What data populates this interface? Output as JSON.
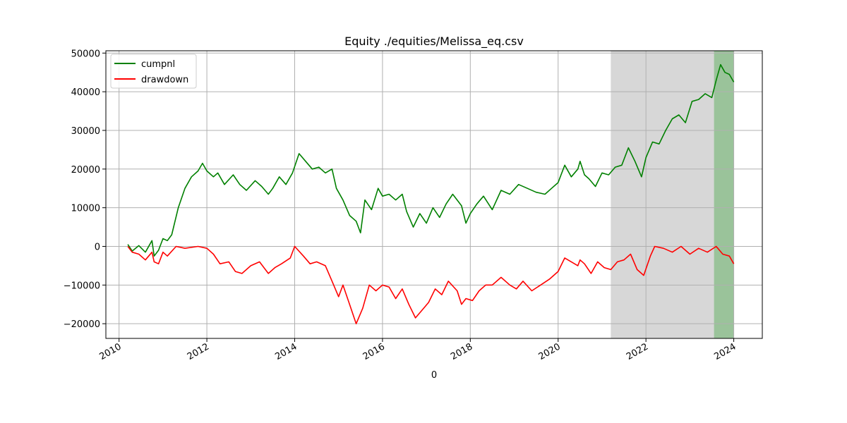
{
  "chart_data": {
    "type": "line",
    "title": "Equity ./equities/Melissa_eq.csv",
    "xlabel": "0",
    "ylabel": "",
    "xlim": [
      2009.7,
      2024.65
    ],
    "ylim": [
      -23800,
      50600
    ],
    "x_ticks": [
      2010,
      2012,
      2014,
      2016,
      2018,
      2020,
      2022,
      2024
    ],
    "x_tick_labels": [
      "2010",
      "2012",
      "2014",
      "2016",
      "2018",
      "2020",
      "2022",
      "2024"
    ],
    "y_ticks": [
      -20000,
      -10000,
      0,
      10000,
      20000,
      30000,
      40000,
      50000
    ],
    "y_tick_labels": [
      "−20000",
      "−10000",
      "0",
      "10000",
      "20000",
      "30000",
      "40000",
      "50000"
    ],
    "grid": true,
    "legend_position": "top-left",
    "shaded_regions": [
      {
        "x": [
          2021.2,
          2023.55
        ],
        "color": "#d3d3d3"
      },
      {
        "x": [
          2023.55,
          2024.0
        ],
        "color": "#8fbc8f"
      }
    ],
    "series": [
      {
        "name": "cumpnl",
        "color": "#008000",
        "x": [
          2010.2,
          2010.3,
          2010.45,
          2010.6,
          2010.75,
          2010.8,
          2010.9,
          2011.0,
          2011.1,
          2011.2,
          2011.35,
          2011.5,
          2011.65,
          2011.8,
          2011.9,
          2012.0,
          2012.15,
          2012.25,
          2012.4,
          2012.6,
          2012.75,
          2012.9,
          2013.1,
          2013.25,
          2013.4,
          2013.5,
          2013.65,
          2013.8,
          2013.95,
          2014.1,
          2014.25,
          2014.4,
          2014.55,
          2014.7,
          2014.85,
          2014.95,
          2015.1,
          2015.25,
          2015.4,
          2015.5,
          2015.6,
          2015.75,
          2015.9,
          2016.0,
          2016.15,
          2016.3,
          2016.45,
          2016.55,
          2016.7,
          2016.85,
          2017.0,
          2017.15,
          2017.3,
          2017.45,
          2017.6,
          2017.8,
          2017.9,
          2018.0,
          2018.15,
          2018.3,
          2018.5,
          2018.7,
          2018.9,
          2019.1,
          2019.3,
          2019.5,
          2019.7,
          2019.85,
          2020.0,
          2020.15,
          2020.3,
          2020.45,
          2020.5,
          2020.6,
          2020.7,
          2020.85,
          2021.0,
          2021.15,
          2021.3,
          2021.45,
          2021.6,
          2021.75,
          2021.9,
          2022.0,
          2022.15,
          2022.3,
          2022.45,
          2022.6,
          2022.75,
          2022.9,
          2023.05,
          2023.2,
          2023.35,
          2023.5,
          2023.6,
          2023.7,
          2023.8,
          2023.9,
          2024.0
        ],
        "values": [
          500,
          -1200,
          200,
          -1500,
          1500,
          -2500,
          -1000,
          2000,
          1500,
          3000,
          10000,
          15000,
          18000,
          19500,
          21500,
          19500,
          18000,
          19000,
          16000,
          18500,
          16000,
          14500,
          17000,
          15500,
          13500,
          15000,
          18000,
          16000,
          19000,
          24000,
          22000,
          20000,
          20500,
          19000,
          20000,
          15000,
          12000,
          8000,
          6500,
          3500,
          12000,
          9500,
          15000,
          13000,
          13500,
          12000,
          13500,
          9000,
          5000,
          8500,
          6000,
          10000,
          7500,
          11000,
          13500,
          10500,
          6000,
          8500,
          11000,
          13000,
          9500,
          14500,
          13500,
          16000,
          15000,
          14000,
          13500,
          15000,
          16500,
          21000,
          18000,
          20000,
          22000,
          18500,
          17500,
          15500,
          19000,
          18500,
          20500,
          21000,
          25500,
          22000,
          18000,
          23000,
          27000,
          26500,
          30000,
          33000,
          34000,
          32000,
          37500,
          38000,
          39500,
          38500,
          43000,
          47000,
          45000,
          44500,
          42500
        ]
      },
      {
        "name": "drawdown",
        "color": "#ff0000",
        "x": [
          2010.2,
          2010.3,
          2010.45,
          2010.6,
          2010.75,
          2010.8,
          2010.9,
          2011.0,
          2011.1,
          2011.3,
          2011.5,
          2011.8,
          2012.0,
          2012.15,
          2012.3,
          2012.5,
          2012.65,
          2012.8,
          2013.0,
          2013.2,
          2013.4,
          2013.55,
          2013.7,
          2013.9,
          2014.0,
          2014.2,
          2014.35,
          2014.5,
          2014.7,
          2014.85,
          2015.0,
          2015.1,
          2015.25,
          2015.4,
          2015.55,
          2015.7,
          2015.85,
          2016.0,
          2016.15,
          2016.3,
          2016.45,
          2016.6,
          2016.75,
          2016.9,
          2017.05,
          2017.2,
          2017.35,
          2017.5,
          2017.7,
          2017.8,
          2017.9,
          2018.05,
          2018.2,
          2018.35,
          2018.5,
          2018.7,
          2018.9,
          2019.05,
          2019.2,
          2019.4,
          2019.6,
          2019.8,
          2020.0,
          2020.15,
          2020.3,
          2020.45,
          2020.5,
          2020.6,
          2020.75,
          2020.9,
          2021.05,
          2021.2,
          2021.35,
          2021.5,
          2021.65,
          2021.8,
          2021.95,
          2022.1,
          2022.2,
          2022.4,
          2022.6,
          2022.8,
          2023.0,
          2023.2,
          2023.4,
          2023.6,
          2023.75,
          2023.9,
          2024.0
        ],
        "values": [
          0,
          -1500,
          -2000,
          -3500,
          -1500,
          -4000,
          -4500,
          -1500,
          -2500,
          0,
          -500,
          0,
          -500,
          -2000,
          -4500,
          -4000,
          -6500,
          -7000,
          -5000,
          -4000,
          -7000,
          -5500,
          -4500,
          -3000,
          0,
          -2500,
          -4500,
          -4000,
          -5000,
          -9000,
          -13000,
          -10000,
          -15000,
          -20000,
          -16000,
          -10000,
          -11500,
          -10000,
          -10500,
          -13500,
          -11000,
          -15000,
          -18500,
          -16500,
          -14500,
          -11000,
          -12500,
          -9000,
          -11500,
          -15000,
          -13500,
          -14000,
          -11500,
          -10000,
          -10000,
          -8000,
          -10000,
          -11000,
          -9000,
          -11500,
          -10000,
          -8500,
          -6500,
          -3000,
          -4000,
          -5000,
          -3500,
          -4500,
          -7000,
          -4000,
          -5500,
          -6000,
          -4000,
          -3500,
          -2000,
          -6000,
          -7500,
          -2500,
          0,
          -500,
          -1500,
          0,
          -2000,
          -500,
          -1500,
          0,
          -2000,
          -2500,
          -4500
        ]
      }
    ]
  }
}
